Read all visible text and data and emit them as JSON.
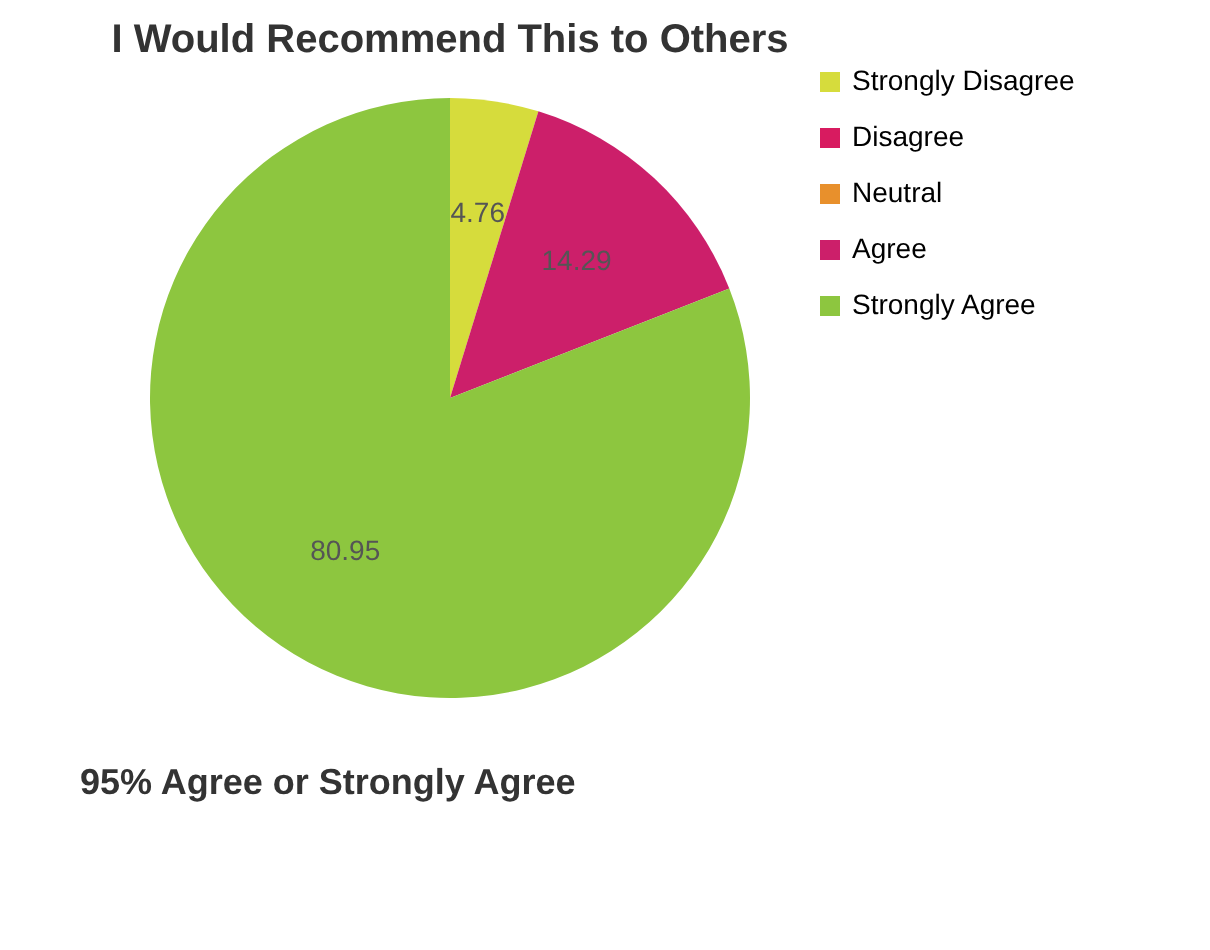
{
  "chart_data": {
    "type": "pie",
    "title": "I Would Recommend This to Others",
    "categories": [
      "Strongly Disagree",
      "Disagree",
      "Neutral",
      "Agree",
      "Strongly Agree"
    ],
    "values": [
      4.76,
      0,
      0,
      14.29,
      80.95
    ],
    "colors": [
      "#d6dc3c",
      "#d81b60",
      "#e8902c",
      "#cc1f6a",
      "#8dc63f"
    ],
    "value_labels": [
      "4.76",
      null,
      null,
      "14.29",
      "80.95"
    ],
    "legend": "right",
    "annotations": [
      "95% Agree or Strongly Agree"
    ]
  }
}
